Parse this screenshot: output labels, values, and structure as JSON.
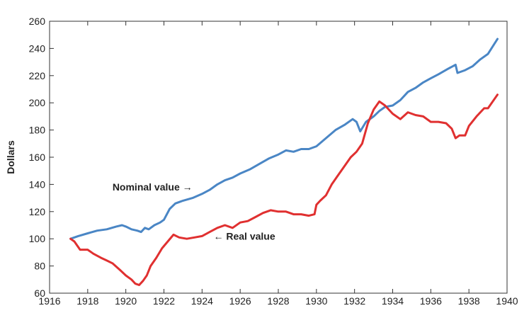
{
  "chart_data": {
    "type": "line",
    "title": "",
    "xlabel": "",
    "ylabel": "Dollars",
    "xlim": [
      1916,
      1940
    ],
    "ylim": [
      60,
      260
    ],
    "x_ticks": [
      1916,
      1918,
      1920,
      1922,
      1924,
      1926,
      1928,
      1930,
      1932,
      1934,
      1936,
      1938,
      1940
    ],
    "y_ticks": [
      60,
      80,
      100,
      120,
      140,
      160,
      180,
      200,
      220,
      240,
      260
    ],
    "grid": false,
    "annotations": [
      {
        "text": "Nominal value →",
        "series": "nominal"
      },
      {
        "text": "← Real value",
        "series": "real"
      }
    ],
    "series": [
      {
        "id": "nominal",
        "color": "#4a86c5",
        "x": [
          1917.1,
          1917.5,
          1918.0,
          1918.5,
          1919.0,
          1919.5,
          1919.8,
          1920.0,
          1920.3,
          1920.6,
          1920.8,
          1921.0,
          1921.2,
          1921.5,
          1921.8,
          1922.0,
          1922.3,
          1922.6,
          1923.0,
          1923.5,
          1924.0,
          1924.4,
          1924.8,
          1925.2,
          1925.6,
          1926.0,
          1926.5,
          1927.0,
          1927.5,
          1928.0,
          1928.4,
          1928.8,
          1929.2,
          1929.6,
          1930.0,
          1930.5,
          1931.0,
          1931.5,
          1931.9,
          1932.1,
          1932.3,
          1932.6,
          1933.0,
          1933.3,
          1933.6,
          1934.0,
          1934.4,
          1934.8,
          1935.2,
          1935.6,
          1936.0,
          1936.4,
          1936.9,
          1937.3,
          1937.4,
          1937.8,
          1938.2,
          1938.6,
          1939.0,
          1939.5
        ],
        "values": [
          100,
          102,
          104,
          106,
          107,
          109,
          110,
          109,
          107,
          106,
          105,
          108,
          107,
          110,
          112,
          114,
          122,
          126,
          128,
          130,
          133,
          136,
          140,
          143,
          145,
          148,
          151,
          155,
          159,
          162,
          165,
          164,
          166,
          166,
          168,
          174,
          180,
          184,
          188,
          186,
          179,
          186,
          190,
          194,
          197,
          198,
          202,
          208,
          211,
          215,
          218,
          221,
          225,
          228,
          222,
          224,
          227,
          232,
          236,
          247
        ]
      },
      {
        "id": "real",
        "color": "#e03030",
        "x": [
          1917.1,
          1917.3,
          1917.6,
          1918.0,
          1918.3,
          1918.7,
          1919.0,
          1919.3,
          1919.7,
          1920.0,
          1920.3,
          1920.5,
          1920.7,
          1920.9,
          1921.1,
          1921.3,
          1921.6,
          1921.9,
          1922.2,
          1922.5,
          1922.8,
          1923.2,
          1923.6,
          1924.0,
          1924.4,
          1924.8,
          1925.2,
          1925.6,
          1926.0,
          1926.4,
          1926.8,
          1927.2,
          1927.6,
          1928.0,
          1928.4,
          1928.8,
          1929.2,
          1929.6,
          1929.9,
          1930.0,
          1930.2,
          1930.5,
          1930.8,
          1931.1,
          1931.4,
          1931.8,
          1932.1,
          1932.4,
          1932.7,
          1933.0,
          1933.3,
          1933.6,
          1934.0,
          1934.4,
          1934.8,
          1935.2,
          1935.6,
          1936.0,
          1936.4,
          1936.8,
          1937.1,
          1937.3,
          1937.5,
          1937.8,
          1938.0,
          1938.4,
          1938.8,
          1939.0,
          1939.5
        ],
        "values": [
          100,
          98,
          92,
          92,
          89,
          86,
          84,
          82,
          77,
          73,
          70,
          67,
          66,
          69,
          73,
          80,
          86,
          93,
          98,
          103,
          101,
          100,
          101,
          102,
          105,
          108,
          110,
          108,
          112,
          113,
          116,
          119,
          121,
          120,
          120,
          118,
          118,
          117,
          118,
          125,
          128,
          132,
          140,
          146,
          152,
          160,
          164,
          170,
          185,
          195,
          201,
          198,
          192,
          188,
          193,
          191,
          190,
          186,
          186,
          185,
          181,
          174,
          176,
          176,
          183,
          190,
          196,
          196,
          206
        ]
      }
    ]
  }
}
